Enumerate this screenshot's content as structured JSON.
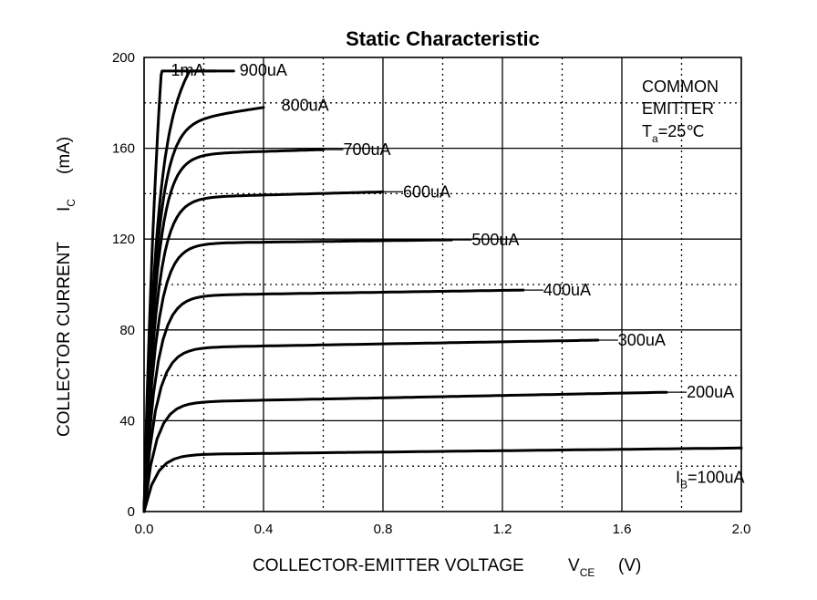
{
  "chart_data": {
    "type": "line",
    "title": "Static Characteristic",
    "xlabel": {
      "main": "COLLECTOR-EMITTER VOLTAGE",
      "symbol": "V",
      "sub": "CE",
      "unit": "(V)"
    },
    "ylabel": {
      "main": "COLLECTOR CURRENT",
      "symbol": "I",
      "sub": "C",
      "unit": "(mA)"
    },
    "xlim": [
      0,
      2.0
    ],
    "ylim": [
      0,
      200
    ],
    "x_ticks": [
      "0.0",
      "0.4",
      "0.8",
      "1.2",
      "1.6",
      "2.0"
    ],
    "y_ticks": [
      "0",
      "40",
      "80",
      "120",
      "160",
      "200"
    ],
    "grid": "major solid, minor dotted",
    "annotation": {
      "line1": "COMMON",
      "line2": "EMITTER",
      "line3_symbol": "T",
      "line3_sub": "a",
      "line3_rest": "=25℃"
    },
    "series": [
      {
        "name": "100uA",
        "label_prefix": "I",
        "label_sub": "B",
        "label_rest": "=100uA",
        "sat": 25,
        "slope": 1.5,
        "vend": 2.0
      },
      {
        "name": "200uA",
        "label": "200uA",
        "sat": 48,
        "slope": 2.6,
        "vend": 1.75
      },
      {
        "name": "300uA",
        "label": "300uA",
        "sat": 72,
        "slope": 2.3,
        "vend": 1.52
      },
      {
        "name": "400uA",
        "label": "400uA",
        "sat": 95,
        "slope": 2.0,
        "vend": 1.27
      },
      {
        "name": "500uA",
        "label": "500uA",
        "sat": 118,
        "slope": 1.6,
        "vend": 1.03
      },
      {
        "name": "600uA",
        "label": "600uA",
        "sat": 138,
        "slope": 3.5,
        "vend": 0.8
      },
      {
        "name": "700uA",
        "label": "700uA",
        "sat": 157,
        "slope": 4.0,
        "vend": 0.6
      },
      {
        "name": "800uA",
        "label": "800uA",
        "sat": 170,
        "slope": 20,
        "vend": 0.4
      },
      {
        "name": "900uA",
        "label": "900uA",
        "sat": 175,
        "slope": 150,
        "vend": 0.3
      },
      {
        "name": "1mA",
        "label": "1mA",
        "sat": 178,
        "slope": 1000,
        "vend": 0.24
      }
    ]
  }
}
